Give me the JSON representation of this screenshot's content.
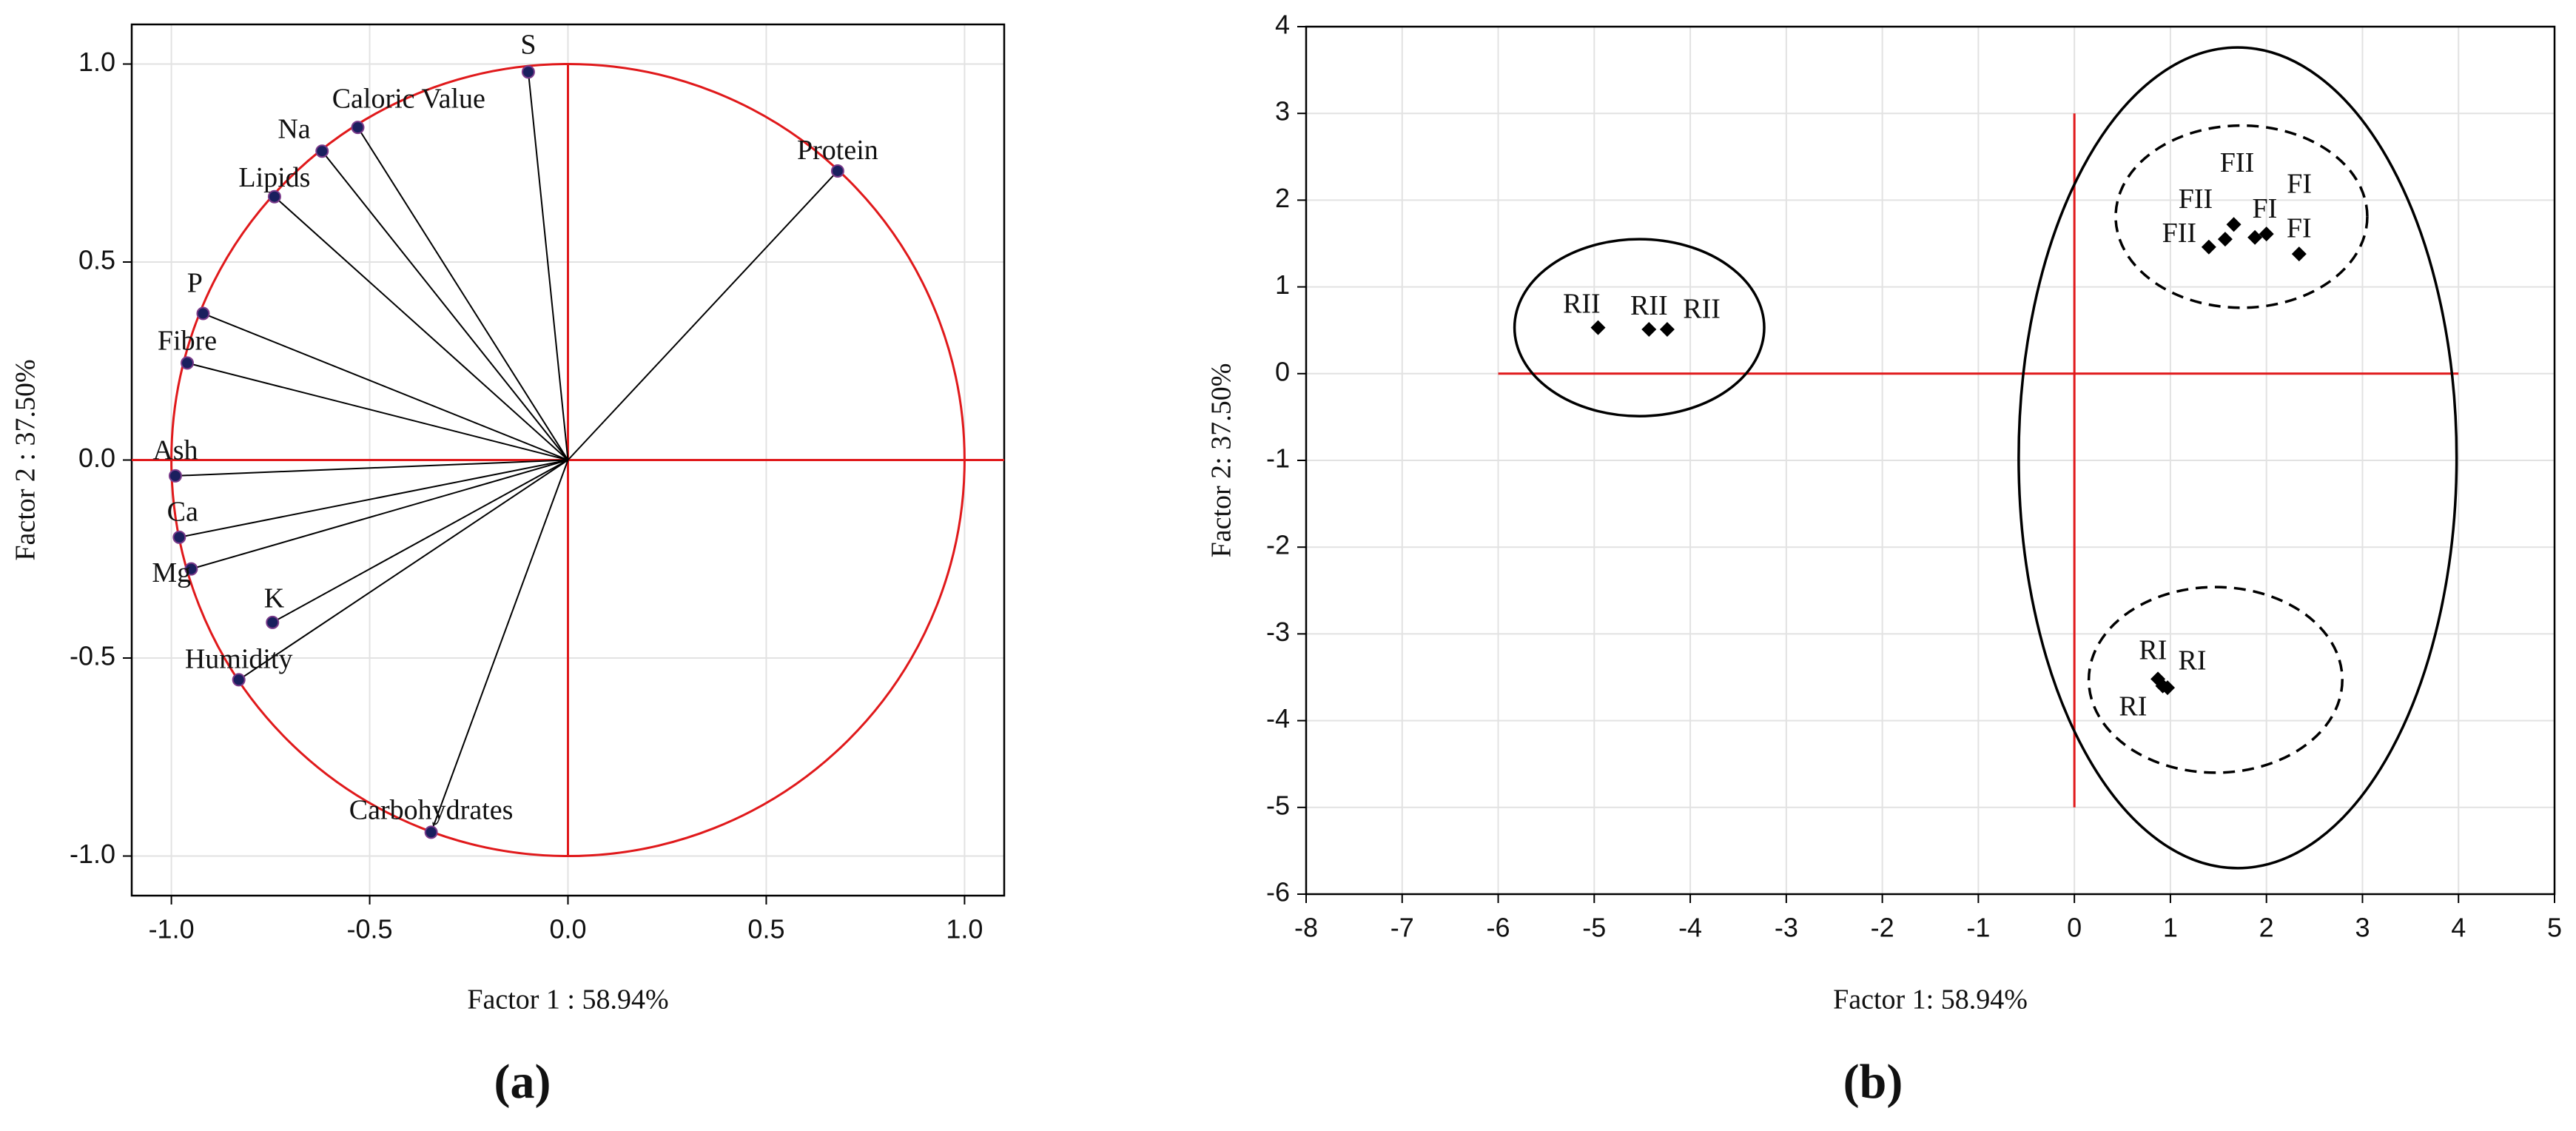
{
  "chart_data": [
    {
      "type": "scatter",
      "subtype": "loadings",
      "x_label": "Factor 1 : 58.94%",
      "y_label": "Factor 2 : 37.50%",
      "caption": "(a)",
      "xlim": [
        -1.1,
        1.1
      ],
      "ylim": [
        -1.1,
        1.1
      ],
      "xticks": [
        {
          "value": -1,
          "label": "-1.0"
        },
        -0.5,
        {
          "value": 0,
          "label": "0.0"
        },
        0.5,
        {
          "value": 1,
          "label": "1.0"
        }
      ],
      "yticks": [
        {
          "value": -1,
          "label": "-1.0"
        },
        -0.5,
        {
          "value": 0,
          "label": "0.0"
        },
        0.5,
        {
          "value": 1,
          "label": "1.0"
        }
      ],
      "grid": true,
      "color": "#1a1f5e",
      "reference_color": "#e0191b",
      "circle_radius": 1,
      "point_labels": [
        "S",
        "Caloric Value",
        "Na",
        "Lipids",
        "Protein",
        "P",
        "Fibre",
        "Ash",
        "Ca",
        "Mg",
        "K",
        "Humidity",
        "Carbohydrates"
      ],
      "x": [
        -0.1,
        -0.53,
        -0.62,
        -0.74,
        0.68,
        -0.92,
        -0.96,
        -0.99,
        -0.98,
        -0.95,
        -0.745,
        -0.83,
        -0.345
      ],
      "values": [
        0.98,
        0.84,
        0.78,
        0.665,
        0.73,
        0.37,
        0.245,
        -0.04,
        -0.195,
        -0.275,
        -0.41,
        -0.555,
        -0.94
      ]
    },
    {
      "type": "scatter",
      "subtype": "scores",
      "x_label": "Factor 1: 58.94%",
      "y_label": "Factor 2: 37.50%",
      "caption": "(b)",
      "xlim": [
        -8,
        5
      ],
      "ylim": [
        -6,
        4
      ],
      "xticks": [
        -8,
        -7,
        -6,
        -5,
        -4,
        -3,
        -2,
        -1,
        0,
        1,
        2,
        3,
        4,
        5
      ],
      "yticks": [
        -6,
        -5,
        -4,
        -3,
        -2,
        -1,
        0,
        1,
        2,
        3,
        4
      ],
      "grid": true,
      "color": "#000000",
      "reference_color": "#e0191b",
      "reference_lines": {
        "h": {
          "y": 0,
          "x": [
            -6,
            4
          ]
        },
        "v": {
          "x": 0,
          "y": [
            -5,
            3
          ]
        }
      },
      "ellipses": [
        {
          "cx": -4.53,
          "cy": 0.53,
          "rx": 1.3,
          "ry": 1.02,
          "dashed": false
        },
        {
          "cx": 1.7,
          "cy": -0.97,
          "rx": 2.28,
          "ry": 4.73,
          "dashed": false
        },
        {
          "cx": 1.74,
          "cy": 1.81,
          "rx": 1.31,
          "ry": 1.05,
          "dashed": true
        },
        {
          "cx": 1.47,
          "cy": -3.53,
          "rx": 1.32,
          "ry": 1.07,
          "dashed": true
        }
      ],
      "point_labels": [
        "RII",
        "RII",
        "RII",
        "FII",
        "FII",
        "FII",
        "FI",
        "FI",
        "FI",
        "RI",
        "RI",
        "RI"
      ],
      "x": [
        -4.96,
        -4.43,
        -4.24,
        1.4,
        1.57,
        1.66,
        1.88,
        2.0,
        2.34,
        0.87,
        0.92,
        0.97
      ],
      "values": [
        0.53,
        0.51,
        0.51,
        1.46,
        1.55,
        1.72,
        1.57,
        1.61,
        1.38,
        -3.52,
        -3.6,
        -3.62
      ]
    }
  ]
}
